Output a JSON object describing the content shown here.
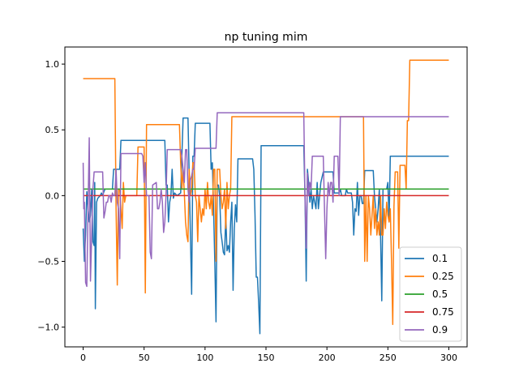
{
  "chart_data": {
    "type": "line",
    "title": "np tuning mim",
    "xlabel": "",
    "ylabel": "",
    "xlim": [
      -15,
      315
    ],
    "ylim": [
      -1.15,
      1.13
    ],
    "xticks": [
      0,
      50,
      100,
      150,
      200,
      250,
      300
    ],
    "yticks": [
      -1.0,
      -0.5,
      0.0,
      0.5,
      1.0
    ],
    "xtick_labels": [
      "0",
      "50",
      "100",
      "150",
      "200",
      "250",
      "300"
    ],
    "ytick_labels": [
      "−1.0",
      "−0.5",
      "0.0",
      "0.5",
      "1.0"
    ],
    "grid": false,
    "legend_position": "bottom-right",
    "series": [
      {
        "name": "0.1",
        "color": "#1f77b4",
        "points": [
          [
            0,
            -0.25
          ],
          [
            1,
            -0.5
          ],
          [
            2,
            -0.3
          ],
          [
            3,
            0.03
          ],
          [
            4,
            -0.1
          ],
          [
            5,
            -0.2
          ],
          [
            6,
            -0.15
          ],
          [
            7,
            0.05
          ],
          [
            8,
            -0.35
          ],
          [
            9,
            -0.38
          ],
          [
            9.5,
            0.1
          ],
          [
            10,
            -0.86
          ],
          [
            11,
            -0.05
          ],
          [
            12,
            -0.02
          ],
          [
            14,
            0.0
          ],
          [
            15,
            0.02
          ],
          [
            16,
            0.0
          ],
          [
            17,
            0.03
          ],
          [
            18,
            0.05
          ],
          [
            24,
            0.05
          ],
          [
            25,
            0.2
          ],
          [
            30,
            0.2
          ],
          [
            31,
            0.42
          ],
          [
            67,
            0.42
          ],
          [
            68,
            0.08
          ],
          [
            69,
            0.08
          ],
          [
            70,
            -0.2
          ],
          [
            71,
            -0.05
          ],
          [
            72,
            0.0
          ],
          [
            73,
            0.2
          ],
          [
            74,
            -0.02
          ],
          [
            75,
            0.02
          ],
          [
            77,
            0.0
          ],
          [
            80,
            0.02
          ],
          [
            81,
            0.3
          ],
          [
            82,
            0.59
          ],
          [
            86,
            0.59
          ],
          [
            87,
            0.15
          ],
          [
            88,
            -0.3
          ],
          [
            89,
            -0.75
          ],
          [
            90,
            0.3
          ],
          [
            91,
            0.3
          ],
          [
            92,
            0.55
          ],
          [
            104,
            0.55
          ],
          [
            105,
            0.2
          ],
          [
            106,
            0.25
          ],
          [
            107,
            -0.1
          ],
          [
            108,
            -0.5
          ],
          [
            109,
            -0.96
          ],
          [
            110,
            0.08
          ],
          [
            111,
            0.08
          ],
          [
            112,
            0.0
          ],
          [
            113,
            -0.28
          ],
          [
            114,
            -0.35
          ],
          [
            115,
            -0.43
          ],
          [
            116,
            -0.45
          ],
          [
            117,
            -0.15
          ],
          [
            118,
            -0.42
          ],
          [
            119,
            -0.38
          ],
          [
            120,
            -0.43
          ],
          [
            121,
            -0.2
          ],
          [
            122,
            -0.05
          ],
          [
            123,
            -0.72
          ],
          [
            124,
            -0.25
          ],
          [
            125,
            -0.07
          ],
          [
            126,
            -0.2
          ],
          [
            127,
            0.28
          ],
          [
            139,
            0.28
          ],
          [
            140,
            0.2
          ],
          [
            141,
            -0.15
          ],
          [
            142,
            -0.62
          ],
          [
            143,
            -0.62
          ],
          [
            144,
            -0.82
          ],
          [
            145,
            -1.05
          ],
          [
            146,
            0.38
          ],
          [
            181,
            0.38
          ],
          [
            182,
            0.0
          ],
          [
            183,
            -0.65
          ],
          [
            184,
            0.2
          ],
          [
            185,
            0.1
          ],
          [
            186,
            -0.05
          ],
          [
            187,
            0.05
          ],
          [
            188,
            -0.1
          ],
          [
            189,
            0.0
          ],
          [
            190,
            -0.05
          ],
          [
            191,
            -0.1
          ],
          [
            192,
            0.1
          ],
          [
            193,
            -0.1
          ],
          [
            195,
            0.1
          ],
          [
            197,
            0.18
          ],
          [
            205,
            0.18
          ],
          [
            206,
            0.02
          ],
          [
            210,
            0.02
          ],
          [
            211,
            0.05
          ],
          [
            212,
            0.0
          ],
          [
            215,
            0.0
          ],
          [
            216,
            0.05
          ],
          [
            217,
            0.02
          ],
          [
            220,
            0.02
          ],
          [
            221,
            -0.05
          ],
          [
            222,
            -0.3
          ],
          [
            223,
            -0.1
          ],
          [
            224,
            -0.12
          ],
          [
            225,
            0.1
          ],
          [
            226,
            -0.15
          ],
          [
            227,
            0.0
          ],
          [
            228,
            0.0
          ],
          [
            229,
            -0.06
          ],
          [
            230,
            -0.06
          ],
          [
            231,
            0.19
          ],
          [
            238,
            0.19
          ],
          [
            239,
            0.0
          ],
          [
            240,
            -0.1
          ],
          [
            241,
            -0.2
          ],
          [
            242,
            -0.1
          ],
          [
            243,
            0.05
          ],
          [
            244,
            -0.3
          ],
          [
            245,
            -0.8
          ],
          [
            246,
            0.05
          ],
          [
            249,
            0.05
          ],
          [
            250,
            0.1
          ],
          [
            251,
            -0.2
          ],
          [
            252,
            0.3
          ],
          [
            300,
            0.3
          ]
        ]
      },
      {
        "name": "0.25",
        "color": "#ff7f0e",
        "points": [
          [
            0,
            0.89
          ],
          [
            25,
            0.89
          ],
          [
            26,
            0.89
          ],
          [
            27,
            -0.1
          ],
          [
            28,
            -0.68
          ],
          [
            29,
            0.05
          ],
          [
            30,
            0.05
          ],
          [
            31,
            -0.1
          ],
          [
            32,
            -0.25
          ],
          [
            33,
            0.1
          ],
          [
            34,
            -0.05
          ],
          [
            35,
            0.0
          ],
          [
            44,
            0.0
          ],
          [
            45,
            0.37
          ],
          [
            50,
            0.37
          ],
          [
            51,
            -0.74
          ],
          [
            52,
            0.54
          ],
          [
            79,
            0.54
          ],
          [
            80,
            0.25
          ],
          [
            81,
            0.05
          ],
          [
            82,
            0.2
          ],
          [
            83,
            0.02
          ],
          [
            84,
            -0.2
          ],
          [
            85,
            -0.3
          ],
          [
            86,
            -0.35
          ],
          [
            87,
            0.2
          ],
          [
            88,
            0.0
          ],
          [
            89,
            0.05
          ],
          [
            90,
            0.25
          ],
          [
            91,
            0.25
          ],
          [
            92,
            0.0
          ],
          [
            93,
            -0.05
          ],
          [
            94,
            -0.35
          ],
          [
            95,
            0.0
          ],
          [
            96,
            -0.1
          ],
          [
            97,
            -0.2
          ],
          [
            98,
            -0.1
          ],
          [
            99,
            -0.15
          ],
          [
            100,
            0.05
          ],
          [
            101,
            -0.1
          ],
          [
            102,
            0.1
          ],
          [
            103,
            -0.05
          ],
          [
            104,
            -0.1
          ],
          [
            105,
            0.0
          ],
          [
            106,
            -0.15
          ],
          [
            107,
            0.2
          ],
          [
            108,
            0.2
          ],
          [
            109,
            -0.5
          ],
          [
            110,
            0.2
          ],
          [
            112,
            0.2
          ],
          [
            113,
            0.0
          ],
          [
            114,
            -0.1
          ],
          [
            115,
            -0.05
          ],
          [
            116,
            0.05
          ],
          [
            117,
            -0.25
          ],
          [
            118,
            0.1
          ],
          [
            119,
            -0.1
          ],
          [
            120,
            0.0
          ],
          [
            121,
            0.05
          ],
          [
            122,
            0.6
          ],
          [
            230,
            0.6
          ],
          [
            231,
            -0.5
          ],
          [
            232,
            0.0
          ],
          [
            233,
            -0.5
          ],
          [
            234,
            0.0
          ],
          [
            235,
            -0.1
          ],
          [
            236,
            -0.3
          ],
          [
            237,
            -0.15
          ],
          [
            238,
            0.0
          ],
          [
            239,
            -0.25
          ],
          [
            240,
            -0.1
          ],
          [
            241,
            -0.3
          ],
          [
            242,
            -0.2
          ],
          [
            243,
            -0.3
          ],
          [
            244,
            0.0
          ],
          [
            245,
            -0.3
          ],
          [
            246,
            -0.3
          ],
          [
            247,
            -0.1
          ],
          [
            248,
            -0.25
          ],
          [
            249,
            -0.05
          ],
          [
            250,
            -0.15
          ],
          [
            251,
            -0.2
          ],
          [
            252,
            -0.1
          ],
          [
            253,
            -0.5
          ],
          [
            254,
            -0.98
          ],
          [
            255,
            -0.08
          ],
          [
            256,
            0.18
          ],
          [
            258,
            0.18
          ],
          [
            259,
            -0.4
          ],
          [
            260,
            0.23
          ],
          [
            264,
            0.23
          ],
          [
            265,
            0.05
          ],
          [
            266,
            0.57
          ],
          [
            267,
            0.57
          ],
          [
            268,
            1.03
          ],
          [
            300,
            1.03
          ]
        ]
      },
      {
        "name": "0.5",
        "color": "#2ca02c",
        "points": [
          [
            0,
            0.05
          ],
          [
            300,
            0.05
          ]
        ]
      },
      {
        "name": "0.75",
        "color": "#d62728",
        "points": [
          [
            0,
            0.0
          ],
          [
            300,
            0.0
          ]
        ]
      },
      {
        "name": "0.9",
        "color": "#9467bd",
        "points": [
          [
            0,
            0.25
          ],
          [
            0.5,
            -0.1
          ],
          [
            1,
            -0.05
          ],
          [
            2,
            -0.66
          ],
          [
            3,
            -0.69
          ],
          [
            4,
            -0.1
          ],
          [
            5,
            0.44
          ],
          [
            6,
            -0.65
          ],
          [
            7,
            -0.3
          ],
          [
            8,
            0.05
          ],
          [
            9,
            0.18
          ],
          [
            16,
            0.18
          ],
          [
            17,
            -0.17
          ],
          [
            18,
            -0.12
          ],
          [
            19,
            -0.05
          ],
          [
            20,
            -0.05
          ],
          [
            21,
            0.0
          ],
          [
            22,
            0.0
          ],
          [
            23,
            -0.05
          ],
          [
            24,
            0.02
          ],
          [
            25,
            0.0
          ],
          [
            26,
            0.0
          ],
          [
            27,
            0.2
          ],
          [
            28,
            -0.05
          ],
          [
            29,
            -0.1
          ],
          [
            30,
            -0.48
          ],
          [
            31,
            0.32
          ],
          [
            48,
            0.32
          ],
          [
            49,
            0.3
          ],
          [
            50,
            0.1
          ],
          [
            51,
            0.25
          ],
          [
            52,
            0.0
          ],
          [
            53,
            0.0
          ],
          [
            54,
            0.0
          ],
          [
            55,
            -0.43
          ],
          [
            56,
            -0.48
          ],
          [
            57,
            0.08
          ],
          [
            60,
            0.1
          ],
          [
            61,
            -0.1
          ],
          [
            62,
            -0.1
          ],
          [
            63,
            -0.05
          ],
          [
            64,
            0.05
          ],
          [
            65,
            -0.05
          ],
          [
            66,
            -0.28
          ],
          [
            67,
            -0.2
          ],
          [
            68,
            0.0
          ],
          [
            69,
            0.35
          ],
          [
            80,
            0.35
          ],
          [
            81,
            0.3
          ],
          [
            82,
            0.2
          ],
          [
            83,
            0.1
          ],
          [
            84,
            0.35
          ],
          [
            85,
            0.35
          ],
          [
            86,
            0.05
          ],
          [
            87,
            -0.05
          ],
          [
            88,
            0.12
          ],
          [
            89,
            0.15
          ],
          [
            90,
            0.2
          ],
          [
            91,
            0.2
          ],
          [
            92,
            0.36
          ],
          [
            109,
            0.36
          ],
          [
            110,
            0.63
          ],
          [
            181,
            0.63
          ],
          [
            182,
            0.0
          ],
          [
            183,
            -0.4
          ],
          [
            184,
            0.17
          ],
          [
            185,
            0.0
          ],
          [
            186,
            0.1
          ],
          [
            187,
            0.05
          ],
          [
            188,
            0.3
          ],
          [
            189,
            0.3
          ],
          [
            197,
            0.3
          ],
          [
            198,
            -0.1
          ],
          [
            199,
            -0.48
          ],
          [
            200,
            -0.1
          ],
          [
            201,
            0.1
          ],
          [
            202,
            0.0
          ],
          [
            203,
            0.1
          ],
          [
            204,
            0.1
          ],
          [
            205,
            -0.05
          ],
          [
            206,
            0.3
          ],
          [
            209,
            0.3
          ],
          [
            210,
            0.0
          ],
          [
            211,
            0.6
          ],
          [
            300,
            0.6
          ]
        ]
      }
    ]
  }
}
